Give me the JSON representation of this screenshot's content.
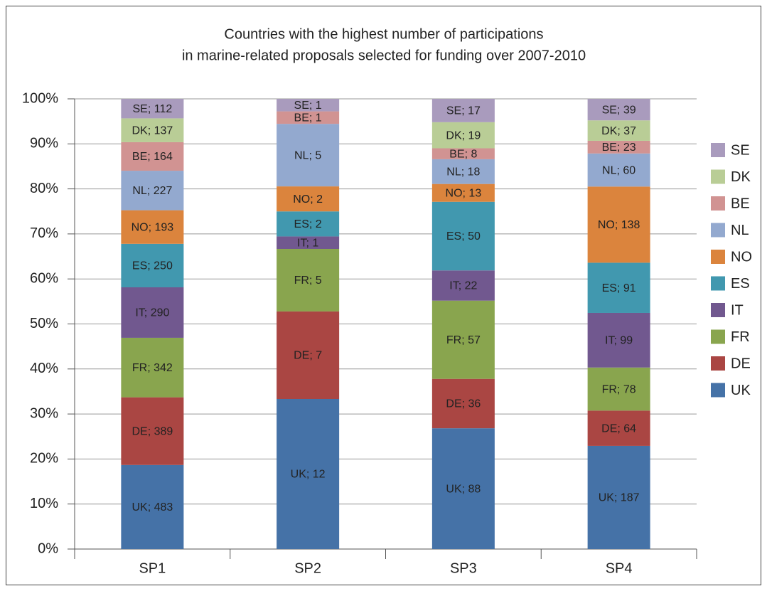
{
  "chart_data": {
    "type": "bar",
    "stacking": "percent",
    "title": [
      "Countries with the highest number of participations",
      "in marine-related proposals selected for funding over 2007-2010"
    ],
    "categories": [
      "SP1",
      "SP2",
      "SP3",
      "SP4"
    ],
    "ylim": [
      0,
      100
    ],
    "yticks": [
      {
        "value": 0,
        "label": "0%"
      },
      {
        "value": 10,
        "label": "10%"
      },
      {
        "value": 20,
        "label": "20%"
      },
      {
        "value": 30,
        "label": "30%"
      },
      {
        "value": 40,
        "label": "40%"
      },
      {
        "value": 50,
        "label": "50%"
      },
      {
        "value": 60,
        "label": "60%"
      },
      {
        "value": 70,
        "label": "70%"
      },
      {
        "value": 80,
        "label": "80%"
      },
      {
        "value": 90,
        "label": "90%"
      },
      {
        "value": 100,
        "label": "100%"
      }
    ],
    "grid": true,
    "legend": "right",
    "series": [
      {
        "name": "UK",
        "color": "#4572a7",
        "values": [
          483,
          12,
          88,
          187
        ],
        "value_labels": [
          "UK; 483",
          "UK; 12",
          "UK; 88",
          "UK; 187"
        ]
      },
      {
        "name": "DE",
        "color": "#aa4643",
        "values": [
          389,
          7,
          36,
          64
        ],
        "value_labels": [
          "DE; 389",
          "DE; 7",
          "DE; 36",
          "DE; 64"
        ]
      },
      {
        "name": "FR",
        "color": "#89a54e",
        "values": [
          342,
          5,
          57,
          78
        ],
        "value_labels": [
          "FR; 342",
          "FR; 5",
          "FR; 57",
          "FR; 78"
        ]
      },
      {
        "name": "IT",
        "color": "#71588f",
        "values": [
          290,
          1,
          22,
          99
        ],
        "value_labels": [
          "IT; 290",
          "IT; 1",
          "IT; 22",
          "IT; 99"
        ]
      },
      {
        "name": "ES",
        "color": "#4198af",
        "values": [
          250,
          2,
          50,
          91
        ],
        "value_labels": [
          "ES; 250",
          "ES; 2",
          "ES; 50",
          "ES; 91"
        ]
      },
      {
        "name": "NO",
        "color": "#db843d",
        "values": [
          193,
          2,
          13,
          138
        ],
        "value_labels": [
          "NO; 193",
          "NO; 2",
          "NO; 13",
          "NO; 138"
        ]
      },
      {
        "name": "NL",
        "color": "#93a9cf",
        "values": [
          227,
          5,
          18,
          60
        ],
        "value_labels": [
          "NL; 227",
          "NL; 5",
          "NL; 18",
          "NL; 60"
        ]
      },
      {
        "name": "BE",
        "color": "#d19392",
        "values": [
          164,
          1,
          8,
          23
        ],
        "value_labels": [
          "BE; 164",
          "BE; 1",
          "BE; 8",
          "BE; 23"
        ]
      },
      {
        "name": "DK",
        "color": "#b9cd96",
        "values": [
          137,
          null,
          19,
          37
        ],
        "value_labels": [
          "DK; 137",
          null,
          "DK; 19",
          "DK; 37"
        ]
      },
      {
        "name": "SE",
        "color": "#a99bbd",
        "values": [
          112,
          1,
          17,
          39
        ],
        "value_labels": [
          "SE; 112",
          "SE; 1",
          "SE; 17",
          "SE; 39"
        ]
      }
    ]
  }
}
